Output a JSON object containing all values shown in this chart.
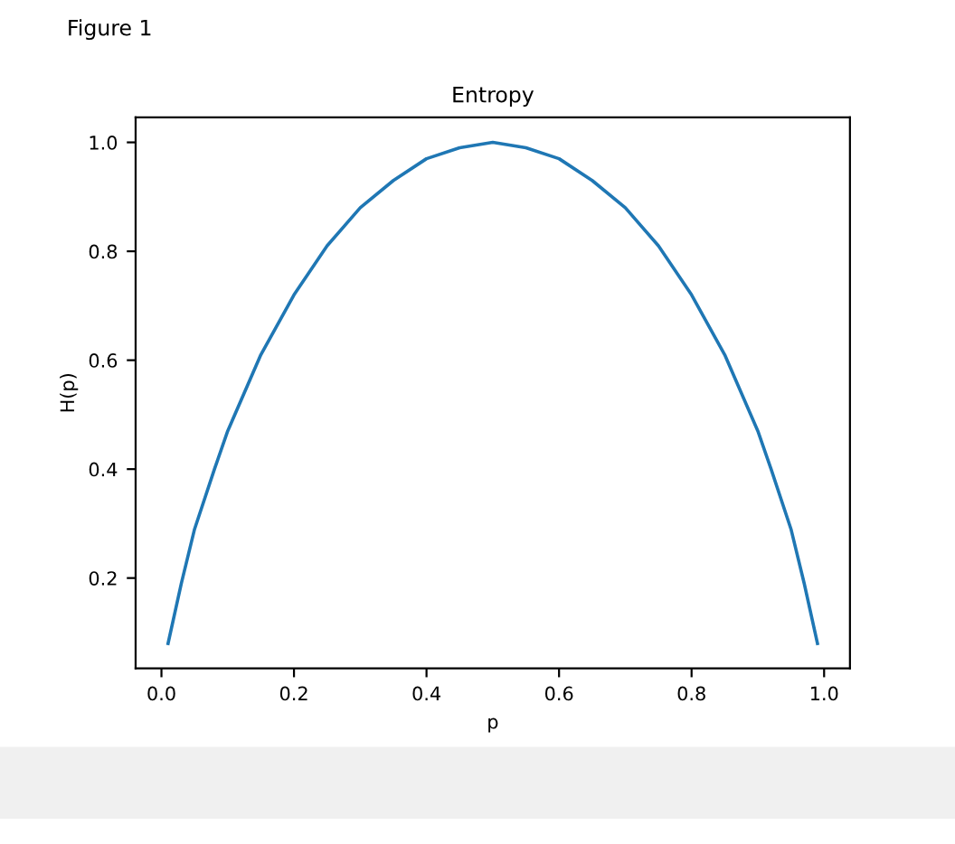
{
  "chart_data": {
    "type": "line",
    "title": "Entropy",
    "xlabel": "p",
    "ylabel": "H(p)",
    "annotations": [
      "Figure 1"
    ],
    "x": [
      0.01,
      0.03,
      0.05,
      0.08,
      0.1,
      0.15,
      0.2,
      0.25,
      0.3,
      0.35,
      0.4,
      0.45,
      0.5,
      0.55,
      0.6,
      0.65,
      0.7,
      0.75,
      0.8,
      0.85,
      0.9,
      0.92,
      0.95,
      0.97,
      0.99
    ],
    "series": [
      {
        "color": "#1f77b4",
        "values": [
          0.08,
          0.19,
          0.29,
          0.4,
          0.47,
          0.61,
          0.72,
          0.81,
          0.88,
          0.93,
          0.97,
          0.99,
          1.0,
          0.99,
          0.97,
          0.93,
          0.88,
          0.81,
          0.72,
          0.61,
          0.47,
          0.4,
          0.29,
          0.19,
          0.08
        ]
      }
    ],
    "xlim": [
      -0.039,
      1.039
    ],
    "ylim": [
      0.034,
      1.046
    ],
    "xticks": [
      {
        "value": 0,
        "label": "0.0"
      },
      0.2,
      0.4,
      0.6,
      0.8,
      {
        "value": 1,
        "label": "1.0"
      }
    ],
    "yticks": [
      0.2,
      0.4,
      0.6,
      0.8,
      {
        "value": 1,
        "label": "1.0"
      }
    ],
    "grid": false,
    "legend": false,
    "marker": "none",
    "line_style": "solid"
  }
}
